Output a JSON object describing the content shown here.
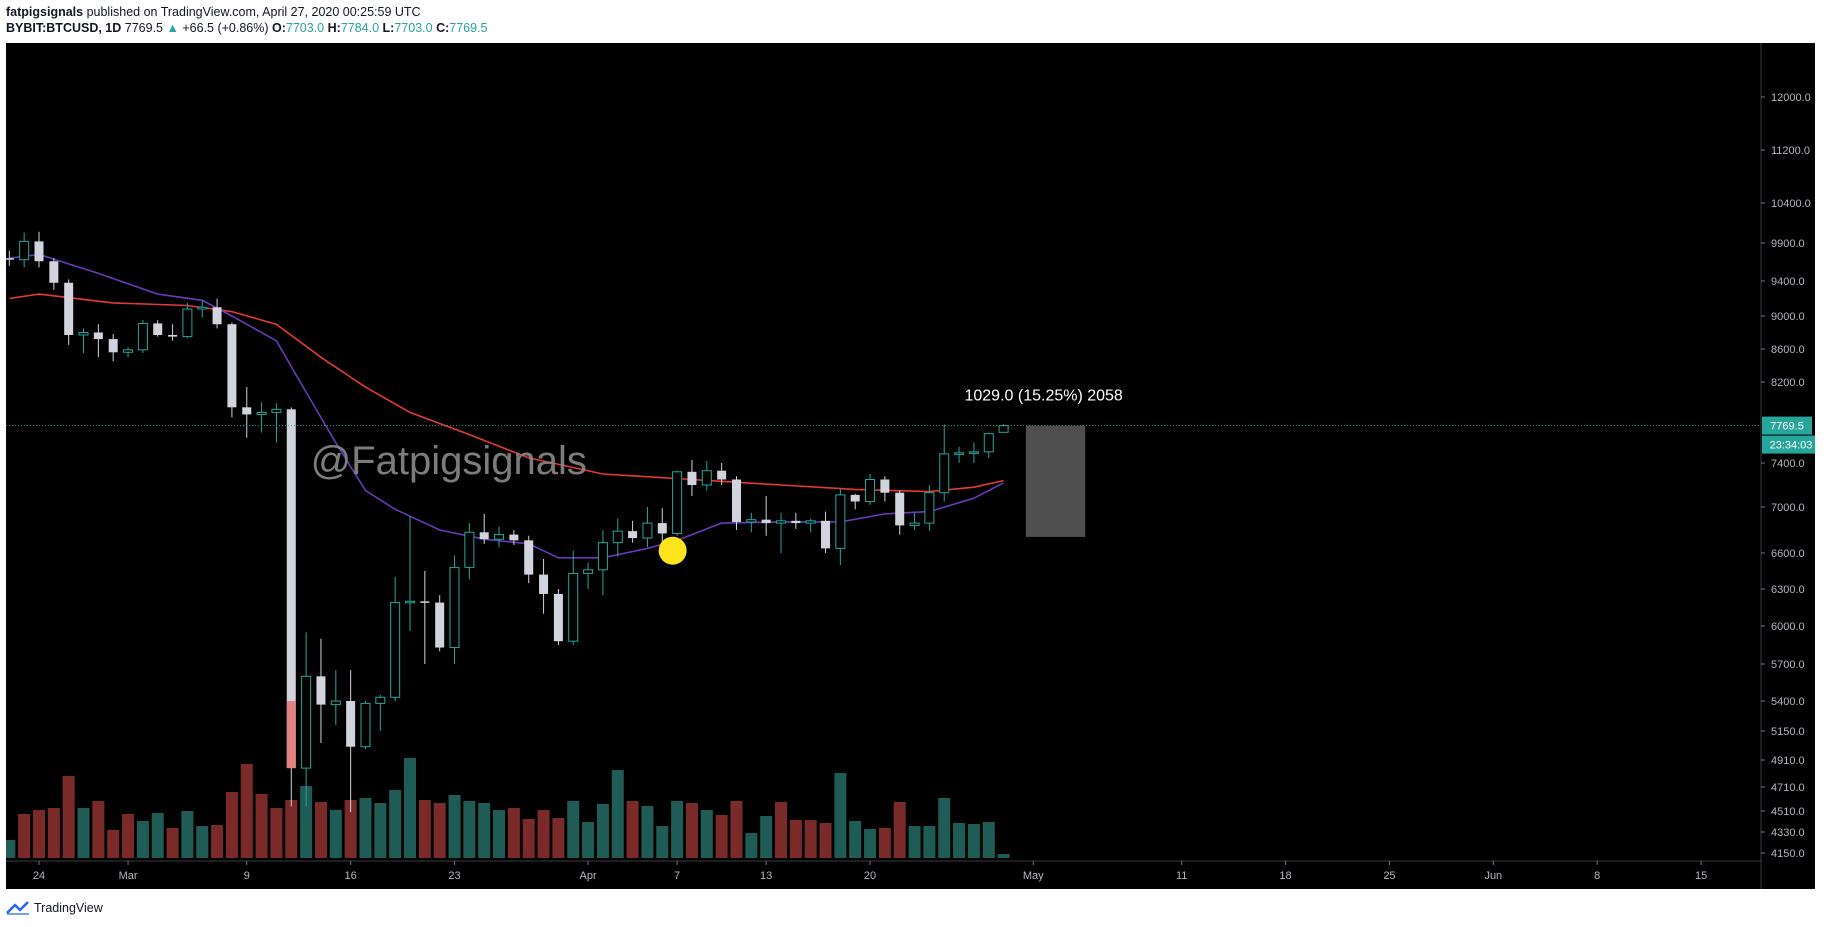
{
  "header": {
    "author": "fatpigsignals",
    "published_text": "published on TradingView.com, April 27, 2020 00:25:59 UTC",
    "symbol": "BYBIT:BTCUSD, 1D",
    "last": "7769.5",
    "change": "+66.5 (+0.86%)",
    "o_label": "O:",
    "o_val": "7703.0",
    "h_label": "H:",
    "h_val": "7784.0",
    "l_label": "L:",
    "l_val": "7703.0",
    "c_label": "C:",
    "c_val": "7769.5"
  },
  "footer": {
    "brand": "TradingView"
  },
  "chart_data": {
    "type": "candlestick",
    "watermark": "@Fatpigsignals",
    "measure_label": "1029.0 (15.25%) 2058",
    "price_label": "7769.5",
    "countdown_label": "23:34:03",
    "current_price": 7769.5,
    "y_axis_ticks": [
      12000,
      11200,
      10400,
      9900,
      9400,
      9000,
      8600,
      8200,
      7400,
      7000,
      6600,
      6300,
      6000,
      5700,
      5400,
      5150,
      4910,
      4710,
      4510,
      4330,
      4150
    ],
    "x_axis_labels": [
      {
        "label": "24",
        "day": 0
      },
      {
        "label": "Mar",
        "day": 6
      },
      {
        "label": "9",
        "day": 14
      },
      {
        "label": "16",
        "day": 21
      },
      {
        "label": "23",
        "day": 28
      },
      {
        "label": "Apr",
        "day": 37
      },
      {
        "label": "7",
        "day": 43
      },
      {
        "label": "13",
        "day": 49
      },
      {
        "label": "20",
        "day": 56
      },
      {
        "label": "May",
        "day": 67
      },
      {
        "label": "11",
        "day": 77
      },
      {
        "label": "18",
        "day": 84
      },
      {
        "label": "25",
        "day": 91
      },
      {
        "label": "Jun",
        "day": 98
      },
      {
        "label": "8",
        "day": 105
      },
      {
        "label": "15",
        "day": 112
      }
    ],
    "candles": [
      {
        "d": -2,
        "o": 9700,
        "h": 9800,
        "l": 9600,
        "c": 9680
      },
      {
        "d": -1,
        "o": 9680,
        "h": 10030,
        "l": 9580,
        "c": 9920
      },
      {
        "d": 0,
        "o": 9920,
        "h": 10040,
        "l": 9580,
        "c": 9660
      },
      {
        "d": 1,
        "o": 9660,
        "h": 9700,
        "l": 9300,
        "c": 9380
      },
      {
        "d": 2,
        "o": 9380,
        "h": 9420,
        "l": 8650,
        "c": 8770
      },
      {
        "d": 3,
        "o": 8770,
        "h": 8850,
        "l": 8550,
        "c": 8800
      },
      {
        "d": 4,
        "o": 8800,
        "h": 8900,
        "l": 8500,
        "c": 8720
      },
      {
        "d": 5,
        "o": 8720,
        "h": 8780,
        "l": 8450,
        "c": 8560
      },
      {
        "d": 6,
        "o": 8560,
        "h": 8620,
        "l": 8500,
        "c": 8590
      },
      {
        "d": 7,
        "o": 8590,
        "h": 8950,
        "l": 8550,
        "c": 8910
      },
      {
        "d": 8,
        "o": 8910,
        "h": 8950,
        "l": 8750,
        "c": 8770
      },
      {
        "d": 9,
        "o": 8770,
        "h": 8900,
        "l": 8700,
        "c": 8750
      },
      {
        "d": 10,
        "o": 8750,
        "h": 9150,
        "l": 8730,
        "c": 9080
      },
      {
        "d": 11,
        "o": 9080,
        "h": 9180,
        "l": 8980,
        "c": 9100
      },
      {
        "d": 12,
        "o": 9100,
        "h": 9200,
        "l": 8850,
        "c": 8900
      },
      {
        "d": 13,
        "o": 8900,
        "h": 8920,
        "l": 7850,
        "c": 7950
      },
      {
        "d": 14,
        "o": 7950,
        "h": 8150,
        "l": 7650,
        "c": 7880
      },
      {
        "d": 15,
        "o": 7880,
        "h": 8000,
        "l": 7700,
        "c": 7900
      },
      {
        "d": 16,
        "o": 7900,
        "h": 7990,
        "l": 7600,
        "c": 7930
      },
      {
        "d": 17,
        "o": 7930,
        "h": 7950,
        "l": 4550,
        "c": 4850
      },
      {
        "d": 18,
        "o": 4850,
        "h": 5950,
        "l": 4550,
        "c": 5600
      },
      {
        "d": 19,
        "o": 5600,
        "h": 5900,
        "l": 5050,
        "c": 5370
      },
      {
        "d": 20,
        "o": 5370,
        "h": 5650,
        "l": 5200,
        "c": 5400
      },
      {
        "d": 21,
        "o": 5400,
        "h": 5650,
        "l": 4500,
        "c": 5020
      },
      {
        "d": 22,
        "o": 5020,
        "h": 5400,
        "l": 5000,
        "c": 5380
      },
      {
        "d": 23,
        "o": 5380,
        "h": 5450,
        "l": 5150,
        "c": 5430
      },
      {
        "d": 24,
        "o": 5430,
        "h": 6400,
        "l": 5400,
        "c": 6190
      },
      {
        "d": 25,
        "o": 6190,
        "h": 6920,
        "l": 5960,
        "c": 6200
      },
      {
        "d": 26,
        "o": 6200,
        "h": 6450,
        "l": 5700,
        "c": 6190
      },
      {
        "d": 27,
        "o": 6190,
        "h": 6250,
        "l": 5800,
        "c": 5830
      },
      {
        "d": 28,
        "o": 5830,
        "h": 6580,
        "l": 5700,
        "c": 6480
      },
      {
        "d": 29,
        "o": 6480,
        "h": 6860,
        "l": 6380,
        "c": 6780
      },
      {
        "d": 30,
        "o": 6780,
        "h": 6940,
        "l": 6680,
        "c": 6720
      },
      {
        "d": 31,
        "o": 6720,
        "h": 6830,
        "l": 6650,
        "c": 6760
      },
      {
        "d": 32,
        "o": 6760,
        "h": 6800,
        "l": 6670,
        "c": 6710
      },
      {
        "d": 33,
        "o": 6710,
        "h": 6750,
        "l": 6350,
        "c": 6420
      },
      {
        "d": 34,
        "o": 6420,
        "h": 6550,
        "l": 6100,
        "c": 6260
      },
      {
        "d": 35,
        "o": 6260,
        "h": 6300,
        "l": 5850,
        "c": 5880
      },
      {
        "d": 36,
        "o": 5880,
        "h": 6620,
        "l": 5850,
        "c": 6430
      },
      {
        "d": 37,
        "o": 6430,
        "h": 6520,
        "l": 6300,
        "c": 6460
      },
      {
        "d": 38,
        "o": 6460,
        "h": 6800,
        "l": 6250,
        "c": 6690
      },
      {
        "d": 39,
        "o": 6690,
        "h": 6900,
        "l": 6570,
        "c": 6790
      },
      {
        "d": 40,
        "o": 6790,
        "h": 6880,
        "l": 6690,
        "c": 6730
      },
      {
        "d": 41,
        "o": 6730,
        "h": 7000,
        "l": 6650,
        "c": 6860
      },
      {
        "d": 42,
        "o": 6860,
        "h": 6990,
        "l": 6700,
        "c": 6770
      },
      {
        "d": 43,
        "o": 6770,
        "h": 7330,
        "l": 6750,
        "c": 7320
      },
      {
        "d": 44,
        "o": 7320,
        "h": 7430,
        "l": 7100,
        "c": 7200
      },
      {
        "d": 45,
        "o": 7200,
        "h": 7420,
        "l": 7150,
        "c": 7330
      },
      {
        "d": 46,
        "o": 7330,
        "h": 7400,
        "l": 7200,
        "c": 7250
      },
      {
        "d": 47,
        "o": 7250,
        "h": 7280,
        "l": 6800,
        "c": 6870
      },
      {
        "d": 48,
        "o": 6870,
        "h": 6950,
        "l": 6780,
        "c": 6890
      },
      {
        "d": 49,
        "o": 6890,
        "h": 7100,
        "l": 6750,
        "c": 6860
      },
      {
        "d": 50,
        "o": 6860,
        "h": 6950,
        "l": 6600,
        "c": 6880
      },
      {
        "d": 51,
        "o": 6880,
        "h": 6950,
        "l": 6810,
        "c": 6860
      },
      {
        "d": 52,
        "o": 6860,
        "h": 6900,
        "l": 6780,
        "c": 6880
      },
      {
        "d": 53,
        "o": 6880,
        "h": 6960,
        "l": 6600,
        "c": 6640
      },
      {
        "d": 54,
        "o": 6640,
        "h": 7170,
        "l": 6500,
        "c": 7110
      },
      {
        "d": 55,
        "o": 7110,
        "h": 7120,
        "l": 6980,
        "c": 7050
      },
      {
        "d": 56,
        "o": 7050,
        "h": 7300,
        "l": 7020,
        "c": 7250
      },
      {
        "d": 57,
        "o": 7250,
        "h": 7280,
        "l": 7050,
        "c": 7130
      },
      {
        "d": 58,
        "o": 7130,
        "h": 7150,
        "l": 6760,
        "c": 6840
      },
      {
        "d": 59,
        "o": 6840,
        "h": 6950,
        "l": 6800,
        "c": 6860
      },
      {
        "d": 60,
        "o": 6860,
        "h": 7200,
        "l": 6790,
        "c": 7130
      },
      {
        "d": 61,
        "o": 7130,
        "h": 7780,
        "l": 7050,
        "c": 7490
      },
      {
        "d": 62,
        "o": 7490,
        "h": 7560,
        "l": 7400,
        "c": 7500
      },
      {
        "d": 63,
        "o": 7500,
        "h": 7600,
        "l": 7400,
        "c": 7510
      },
      {
        "d": 64,
        "o": 7510,
        "h": 7700,
        "l": 7450,
        "c": 7690
      },
      {
        "d": 65,
        "o": 7703,
        "h": 7784,
        "l": 7703,
        "c": 7769.5
      }
    ],
    "ma_purple": [
      {
        "d": -2,
        "v": 9700
      },
      {
        "d": 0,
        "v": 9750
      },
      {
        "d": 4,
        "v": 9500
      },
      {
        "d": 8,
        "v": 9250
      },
      {
        "d": 11,
        "v": 9180
      },
      {
        "d": 13,
        "v": 9000
      },
      {
        "d": 16,
        "v": 8700
      },
      {
        "d": 18,
        "v": 8100
      },
      {
        "d": 20,
        "v": 7600
      },
      {
        "d": 22,
        "v": 7150
      },
      {
        "d": 24,
        "v": 6980
      },
      {
        "d": 27,
        "v": 6800
      },
      {
        "d": 30,
        "v": 6720
      },
      {
        "d": 33,
        "v": 6680
      },
      {
        "d": 35,
        "v": 6560
      },
      {
        "d": 38,
        "v": 6560
      },
      {
        "d": 41,
        "v": 6640
      },
      {
        "d": 43,
        "v": 6710
      },
      {
        "d": 46,
        "v": 6860
      },
      {
        "d": 50,
        "v": 6870
      },
      {
        "d": 54,
        "v": 6870
      },
      {
        "d": 57,
        "v": 6940
      },
      {
        "d": 60,
        "v": 6960
      },
      {
        "d": 63,
        "v": 7080
      },
      {
        "d": 65,
        "v": 7220
      }
    ],
    "ma_red": [
      {
        "d": -2,
        "v": 9200
      },
      {
        "d": 0,
        "v": 9250
      },
      {
        "d": 5,
        "v": 9150
      },
      {
        "d": 10,
        "v": 9120
      },
      {
        "d": 13,
        "v": 9050
      },
      {
        "d": 16,
        "v": 8900
      },
      {
        "d": 19,
        "v": 8500
      },
      {
        "d": 22,
        "v": 8150
      },
      {
        "d": 25,
        "v": 7900
      },
      {
        "d": 29,
        "v": 7680
      },
      {
        "d": 33,
        "v": 7450
      },
      {
        "d": 38,
        "v": 7300
      },
      {
        "d": 44,
        "v": 7250
      },
      {
        "d": 50,
        "v": 7200
      },
      {
        "d": 55,
        "v": 7160
      },
      {
        "d": 60,
        "v": 7140
      },
      {
        "d": 63,
        "v": 7180
      },
      {
        "d": 65,
        "v": 7240
      }
    ],
    "volume": [
      {
        "d": -2,
        "v": 0.18,
        "up": true
      },
      {
        "d": -1,
        "v": 0.44,
        "up": false
      },
      {
        "d": 0,
        "v": 0.48,
        "up": false
      },
      {
        "d": 1,
        "v": 0.5,
        "up": false
      },
      {
        "d": 2,
        "v": 0.82,
        "up": false
      },
      {
        "d": 3,
        "v": 0.5,
        "up": true
      },
      {
        "d": 4,
        "v": 0.57,
        "up": false
      },
      {
        "d": 5,
        "v": 0.28,
        "up": false
      },
      {
        "d": 6,
        "v": 0.44,
        "up": false
      },
      {
        "d": 7,
        "v": 0.37,
        "up": true
      },
      {
        "d": 8,
        "v": 0.45,
        "up": true
      },
      {
        "d": 9,
        "v": 0.3,
        "up": false
      },
      {
        "d": 10,
        "v": 0.47,
        "up": true
      },
      {
        "d": 11,
        "v": 0.32,
        "up": true
      },
      {
        "d": 12,
        "v": 0.33,
        "up": false
      },
      {
        "d": 13,
        "v": 0.66,
        "up": false
      },
      {
        "d": 14,
        "v": 0.94,
        "up": false
      },
      {
        "d": 15,
        "v": 0.64,
        "up": false
      },
      {
        "d": 16,
        "v": 0.5,
        "up": false
      },
      {
        "d": 17,
        "v": 0.58,
        "up": false
      },
      {
        "d": 18,
        "v": 0.72,
        "up": true
      },
      {
        "d": 19,
        "v": 0.56,
        "up": false
      },
      {
        "d": 20,
        "v": 0.48,
        "up": true
      },
      {
        "d": 21,
        "v": 0.58,
        "up": false
      },
      {
        "d": 22,
        "v": 0.6,
        "up": true
      },
      {
        "d": 23,
        "v": 0.55,
        "up": true
      },
      {
        "d": 24,
        "v": 0.68,
        "up": true
      },
      {
        "d": 25,
        "v": 1.0,
        "up": true
      },
      {
        "d": 26,
        "v": 0.58,
        "up": false
      },
      {
        "d": 27,
        "v": 0.55,
        "up": false
      },
      {
        "d": 28,
        "v": 0.63,
        "up": true
      },
      {
        "d": 29,
        "v": 0.57,
        "up": true
      },
      {
        "d": 30,
        "v": 0.55,
        "up": true
      },
      {
        "d": 31,
        "v": 0.48,
        "up": true
      },
      {
        "d": 32,
        "v": 0.5,
        "up": false
      },
      {
        "d": 33,
        "v": 0.39,
        "up": false
      },
      {
        "d": 34,
        "v": 0.48,
        "up": false
      },
      {
        "d": 35,
        "v": 0.4,
        "up": false
      },
      {
        "d": 36,
        "v": 0.57,
        "up": true
      },
      {
        "d": 37,
        "v": 0.36,
        "up": true
      },
      {
        "d": 38,
        "v": 0.54,
        "up": true
      },
      {
        "d": 39,
        "v": 0.88,
        "up": true
      },
      {
        "d": 40,
        "v": 0.57,
        "up": false
      },
      {
        "d": 41,
        "v": 0.52,
        "up": true
      },
      {
        "d": 42,
        "v": 0.32,
        "up": true
      },
      {
        "d": 43,
        "v": 0.57,
        "up": true
      },
      {
        "d": 44,
        "v": 0.55,
        "up": false
      },
      {
        "d": 45,
        "v": 0.48,
        "up": true
      },
      {
        "d": 46,
        "v": 0.43,
        "up": false
      },
      {
        "d": 47,
        "v": 0.57,
        "up": false
      },
      {
        "d": 48,
        "v": 0.25,
        "up": true
      },
      {
        "d": 49,
        "v": 0.42,
        "up": true
      },
      {
        "d": 50,
        "v": 0.56,
        "up": false
      },
      {
        "d": 51,
        "v": 0.38,
        "up": false
      },
      {
        "d": 52,
        "v": 0.38,
        "up": false
      },
      {
        "d": 53,
        "v": 0.35,
        "up": false
      },
      {
        "d": 54,
        "v": 0.85,
        "up": true
      },
      {
        "d": 55,
        "v": 0.37,
        "up": true
      },
      {
        "d": 56,
        "v": 0.29,
        "up": true
      },
      {
        "d": 57,
        "v": 0.3,
        "up": false
      },
      {
        "d": 58,
        "v": 0.56,
        "up": false
      },
      {
        "d": 59,
        "v": 0.32,
        "up": true
      },
      {
        "d": 60,
        "v": 0.32,
        "up": true
      },
      {
        "d": 61,
        "v": 0.6,
        "up": true
      },
      {
        "d": 62,
        "v": 0.35,
        "up": true
      },
      {
        "d": 63,
        "v": 0.34,
        "up": true
      },
      {
        "d": 64,
        "v": 0.36,
        "up": true
      },
      {
        "d": 65,
        "v": 0.04,
        "up": true
      }
    ],
    "measure_box": {
      "d_from": 66.5,
      "d_to": 70.5,
      "top": 7769.5,
      "bottom": 6740
    },
    "marker_circle": {
      "d": 42.7,
      "v": 6620
    },
    "colors": {
      "background": "#000000",
      "candle_up_body": "#000000",
      "candle_up_border": "#26a69a",
      "candle_down_body": "#d1d4dc",
      "wick": "#d1d4dc",
      "ma_purple": "#673ab7",
      "ma_red": "#e53935",
      "vol_up": "#1f5c55",
      "vol_down": "#7b2a2a",
      "marker": "#fce31c",
      "axis_text": "#b2b5be",
      "price_tag": "#26a69a",
      "measure_box": "#5d5d5d"
    }
  }
}
